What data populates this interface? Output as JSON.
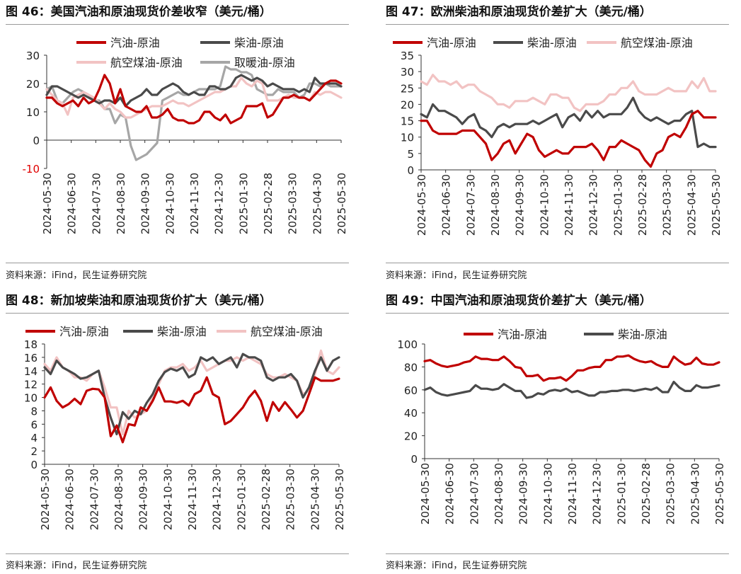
{
  "panels": [
    {
      "title": "图 46：美国汽油和原油现货价差收窄（美元/桶）",
      "source": "资料来源：iFind，民生证券研究院"
    },
    {
      "title": "图 47：欧洲柴油和原油现货价差扩大（美元/桶）",
      "source": "资料来源：iFind，民生证券研究院"
    },
    {
      "title": "图 48：新加坡柴油和原油现货价扩大（美元/桶）",
      "source": "资料来源：iFind，民生证券研究院"
    },
    {
      "title": "图 49：中国汽油和原油现货价差扩大（美元/桶）",
      "source": "资料来源：iFind，民生证券研究院"
    }
  ],
  "chart_data": [
    {
      "type": "line",
      "title": "图 46：美国汽油和原油现货价差收窄（美元/桶）",
      "ylim": [
        -10,
        30
      ],
      "yticks": [
        -10,
        0,
        10,
        20,
        30
      ],
      "negative_tick_color": "#e00000",
      "x_ticks": [
        "2024-05-30",
        "2024-06-30",
        "2024-07-30",
        "2024-08-30",
        "2024-09-30",
        "2024-10-30",
        "2024-11-30",
        "2024-12-30",
        "2025-01-30",
        "2025-02-28",
        "2025-03-30",
        "2025-04-30",
        "2025-05-30"
      ],
      "legend_columns": 2,
      "legend_position": "top",
      "series": [
        {
          "name": "汽油-原油",
          "color": "#c00000",
          "values": [
            15,
            15,
            13,
            12,
            13,
            14,
            12,
            15,
            13,
            14,
            18,
            23,
            20,
            13,
            18,
            12,
            11,
            10,
            10,
            12,
            8,
            8,
            9,
            11,
            8,
            7,
            7,
            6,
            6,
            7,
            10,
            10,
            8,
            7,
            9,
            6,
            7,
            8,
            12,
            12,
            12,
            13,
            8,
            9,
            12,
            15,
            15,
            16,
            15,
            15,
            14,
            16,
            18,
            20,
            21,
            21,
            20
          ]
        },
        {
          "name": "柴油-原油",
          "color": "#4a4a4a",
          "values": [
            16,
            19,
            19,
            18,
            17,
            16,
            15,
            16,
            15,
            14,
            13,
            14,
            14,
            13,
            15,
            12,
            14,
            15,
            16,
            18,
            16,
            16,
            18,
            19,
            20,
            19,
            17,
            16,
            17,
            16,
            16,
            19,
            19,
            18,
            18,
            19,
            22,
            23,
            22,
            21,
            22,
            21,
            19,
            20,
            19,
            18,
            18,
            18,
            17,
            18,
            17,
            22,
            20,
            20,
            20,
            20,
            19
          ]
        },
        {
          "name": "航空煤油-原油",
          "color": "#f2c3c3",
          "values": [
            18,
            16,
            14,
            13,
            9,
            15,
            16,
            17,
            16,
            15,
            13,
            11,
            13,
            11,
            10,
            8,
            8,
            9,
            10,
            11,
            12,
            12,
            12,
            13,
            14,
            13,
            13,
            12,
            13,
            14,
            15,
            16,
            17,
            17,
            18,
            19,
            19,
            22,
            20,
            19,
            21,
            20,
            14,
            14,
            14,
            15,
            16,
            15,
            15,
            15,
            14,
            17,
            16,
            17,
            17,
            16,
            15
          ]
        },
        {
          "name": "取暖油-原油",
          "color": "#a6a6a6",
          "values": [
            18,
            19,
            14,
            13,
            15,
            17,
            18,
            17,
            16,
            14,
            14,
            11,
            11,
            6,
            9,
            8,
            -2,
            -7,
            -6,
            -5,
            -3,
            -1,
            14,
            15,
            16,
            17,
            16,
            16,
            17,
            18,
            18,
            18,
            18,
            19,
            26,
            25,
            25,
            24,
            24,
            23,
            18,
            17,
            16,
            16,
            18,
            17,
            17,
            17,
            15,
            16,
            20,
            20,
            19,
            20,
            19,
            19,
            19
          ]
        }
      ]
    },
    {
      "type": "line",
      "title": "图 47：欧洲柴油和原油现货价差扩大（美元/桶）",
      "ylim": [
        0,
        35
      ],
      "yticks": [
        0,
        5,
        10,
        15,
        20,
        25,
        30,
        35
      ],
      "x_ticks": [
        "2024-05-30",
        "2024-06-30",
        "2024-07-30",
        "2024-08-30",
        "2024-09-30",
        "2024-10-30",
        "2024-11-30",
        "2024-12-30",
        "2025-01-30",
        "2025-02-28",
        "2025-03-30",
        "2025-04-30",
        "2025-05-30"
      ],
      "legend_columns": 3,
      "legend_position": "top",
      "series": [
        {
          "name": "汽油-原油",
          "color": "#c00000",
          "values": [
            15,
            15,
            12,
            11,
            11,
            11,
            11,
            12,
            12,
            12,
            10,
            8,
            3,
            5,
            8,
            9,
            5,
            8,
            11,
            10,
            6,
            4,
            5,
            6,
            5,
            5,
            7,
            7,
            7,
            8,
            6,
            3,
            7,
            7,
            9,
            8,
            7,
            6,
            3,
            1,
            5,
            6,
            10,
            11,
            10,
            13,
            17,
            18,
            16,
            16,
            16
          ]
        },
        {
          "name": "柴油-原油",
          "color": "#4a4a4a",
          "values": [
            17,
            16,
            20,
            18,
            18,
            17,
            16,
            14,
            16,
            17,
            13,
            12,
            10,
            13,
            14,
            13,
            14,
            14,
            14,
            15,
            14,
            15,
            16,
            17,
            13,
            16,
            17,
            15,
            18,
            16,
            18,
            16,
            17,
            17,
            17,
            19,
            22,
            18,
            16,
            15,
            16,
            15,
            14,
            15,
            15,
            17,
            18,
            7,
            8,
            7,
            7
          ]
        },
        {
          "name": "航空煤油-原油",
          "color": "#f2c3c3",
          "values": [
            27,
            26,
            29,
            27,
            27,
            26,
            27,
            25,
            26,
            26,
            24,
            23,
            22,
            20,
            20,
            19,
            21,
            21,
            21,
            22,
            21,
            20,
            23,
            23,
            22,
            22,
            19,
            18,
            20,
            20,
            20,
            21,
            23,
            23,
            25,
            25,
            27,
            24,
            23,
            23,
            23,
            24,
            25,
            24,
            24,
            24,
            27,
            25,
            28,
            24,
            24
          ]
        }
      ]
    },
    {
      "type": "line",
      "title": "图 48：新加坡柴油和原油现货价扩大（美元/桶）",
      "ylim": [
        0,
        18
      ],
      "yticks": [
        0,
        2,
        4,
        6,
        8,
        10,
        12,
        14,
        16,
        18
      ],
      "x_ticks": [
        "2024-05-30",
        "2024-06-30",
        "2024-07-30",
        "2024-08-30",
        "2024-09-30",
        "2024-10-30",
        "2024-11-30",
        "2024-12-30",
        "2025-01-30",
        "2025-02-28",
        "2025-03-30",
        "2025-04-30",
        "2025-05-30"
      ],
      "legend_columns": 3,
      "legend_position": "top",
      "series": [
        {
          "name": "汽油-原油",
          "color": "#c00000",
          "values": [
            10,
            11.5,
            9.5,
            8.5,
            9,
            9.8,
            9,
            11,
            11.3,
            11.2,
            10,
            4.2,
            5.8,
            3.3,
            6,
            5.8,
            8.5,
            8,
            9.5,
            11.5,
            9.4,
            9.4,
            9.2,
            9.5,
            8.8,
            10.5,
            11,
            13,
            10.5,
            10,
            6,
            6.5,
            7.5,
            8.5,
            10,
            11,
            9.5,
            6.5,
            9.3,
            8,
            9.3,
            8.2,
            7,
            8,
            10.5,
            13,
            12.5,
            12.5,
            12.5,
            12.8
          ]
        },
        {
          "name": "柴油-原油",
          "color": "#4a4a4a",
          "values": [
            14.5,
            13.5,
            15.5,
            14.5,
            14,
            13.5,
            12.8,
            13,
            13.5,
            14,
            10,
            7,
            4.5,
            7.8,
            6.8,
            8,
            7.5,
            9.2,
            10.5,
            12.5,
            13.8,
            14.3,
            14,
            14.5,
            13,
            13.5,
            16,
            15.5,
            16,
            15,
            15.5,
            16,
            14.5,
            16.5,
            16,
            16,
            15.5,
            13,
            12.5,
            13,
            13,
            13.5,
            12.5,
            10,
            11.5,
            14,
            16,
            14,
            15.5,
            16
          ]
        },
        {
          "name": "航空煤油-原油",
          "color": "#f2c3c3",
          "values": [
            15,
            14,
            16,
            14.5,
            14,
            13,
            13,
            12.5,
            13.5,
            14,
            11.5,
            8.5,
            8.5,
            4.5,
            8,
            7,
            7.5,
            8,
            10,
            12,
            14,
            14.5,
            14.5,
            15,
            14,
            14.5,
            15.5,
            14,
            14.5,
            15,
            15.5,
            15.5,
            16,
            15.5,
            16,
            15.5,
            15,
            13.5,
            13,
            13,
            13.5,
            13,
            12.5,
            10.5,
            11,
            13.5,
            17,
            14,
            13.5,
            14.5
          ]
        }
      ]
    },
    {
      "type": "line",
      "title": "图 49：中国汽油和原油现货价差扩大（美元/桶）",
      "ylim": [
        0,
        100
      ],
      "yticks": [
        0,
        20,
        40,
        60,
        80,
        100
      ],
      "x_ticks": [
        "2024-05-30",
        "2024-06-30",
        "2024-07-30",
        "2024-08-30",
        "2024-09-30",
        "2024-10-30",
        "2024-11-30",
        "2024-12-30",
        "2025-01-30",
        "2025-02-28",
        "2025-03-30",
        "2025-04-30",
        "2025-05-30"
      ],
      "legend_columns": 2,
      "legend_position": "top",
      "series": [
        {
          "name": "汽油-原油",
          "color": "#c00000",
          "values": [
            85,
            86,
            83,
            81,
            80,
            81,
            82,
            84,
            85,
            89,
            87,
            87,
            86,
            86,
            89,
            85,
            80,
            79,
            72,
            72,
            73,
            68,
            70,
            70,
            71,
            68,
            72,
            77,
            77,
            79,
            80,
            80,
            86,
            86,
            89,
            89,
            90,
            87,
            85,
            84,
            85,
            82,
            80,
            80,
            89,
            85,
            82,
            83,
            88,
            83,
            82,
            82,
            84
          ]
        },
        {
          "name": "柴油-原油",
          "color": "#4a4a4a",
          "values": [
            60,
            62,
            58,
            56,
            55,
            56,
            57,
            58,
            59,
            64,
            61,
            61,
            60,
            61,
            65,
            62,
            59,
            59,
            53,
            54,
            57,
            56,
            59,
            60,
            59,
            61,
            58,
            59,
            57,
            55,
            55,
            58,
            58,
            59,
            59,
            60,
            60,
            59,
            60,
            61,
            60,
            62,
            58,
            58,
            67,
            62,
            59,
            59,
            64,
            62,
            62,
            63,
            64
          ]
        }
      ]
    }
  ]
}
